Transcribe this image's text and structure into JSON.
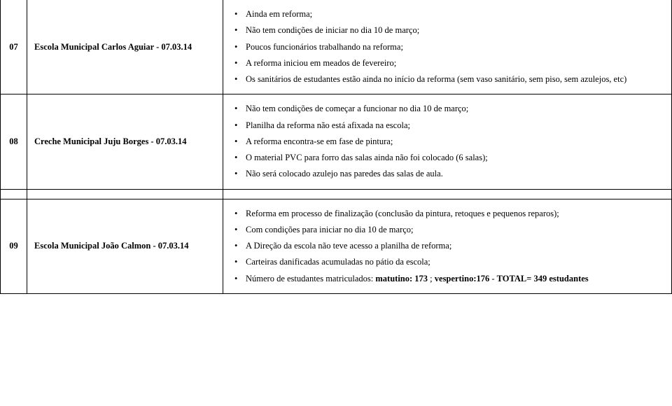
{
  "rows": [
    {
      "num": "07",
      "school": "Escola Municipal Carlos Aguiar - 07.03.14",
      "items": [
        "Ainda em reforma;",
        "Não tem condições de iniciar  no dia 10 de março;",
        "Poucos funcionários trabalhando na reforma;",
        "A reforma iniciou em meados de fevereiro;",
        "Os sanitários de estudantes estão ainda no início da reforma (sem vaso sanitário, sem piso, sem azulejos, etc)"
      ]
    },
    {
      "num": "08",
      "school": "Creche Municipal Juju Borges - 07.03.14",
      "items": [
        "Não tem condições de começar a funcionar no dia 10 de março;",
        "Planilha da reforma não está afixada na escola;",
        "A reforma encontra-se em fase de pintura;",
        "O material PVC para forro das salas ainda não foi colocado (6 salas);",
        "Não será colocado azulejo nas paredes das salas de aula."
      ]
    },
    {
      "num": "09",
      "school": "Escola Municipal João Calmon - 07.03.14",
      "items_html": [
        "Reforma em processo de finalização (conclusão da pintura, retoques e pequenos reparos);",
        "Com condições para iniciar no dia 10 de março;",
        "A Direção da escola não teve acesso a planilha de reforma;",
        "Carteiras danificadas acumuladas no pátio da escola;",
        "Número de estudantes matriculados: <span class=\"bold\">matutino: 173</span> ; <span class=\"bold\">vespertino:176</span>  - <span class=\"bold\">TOTAL= 349 estudantes</span>"
      ]
    }
  ]
}
